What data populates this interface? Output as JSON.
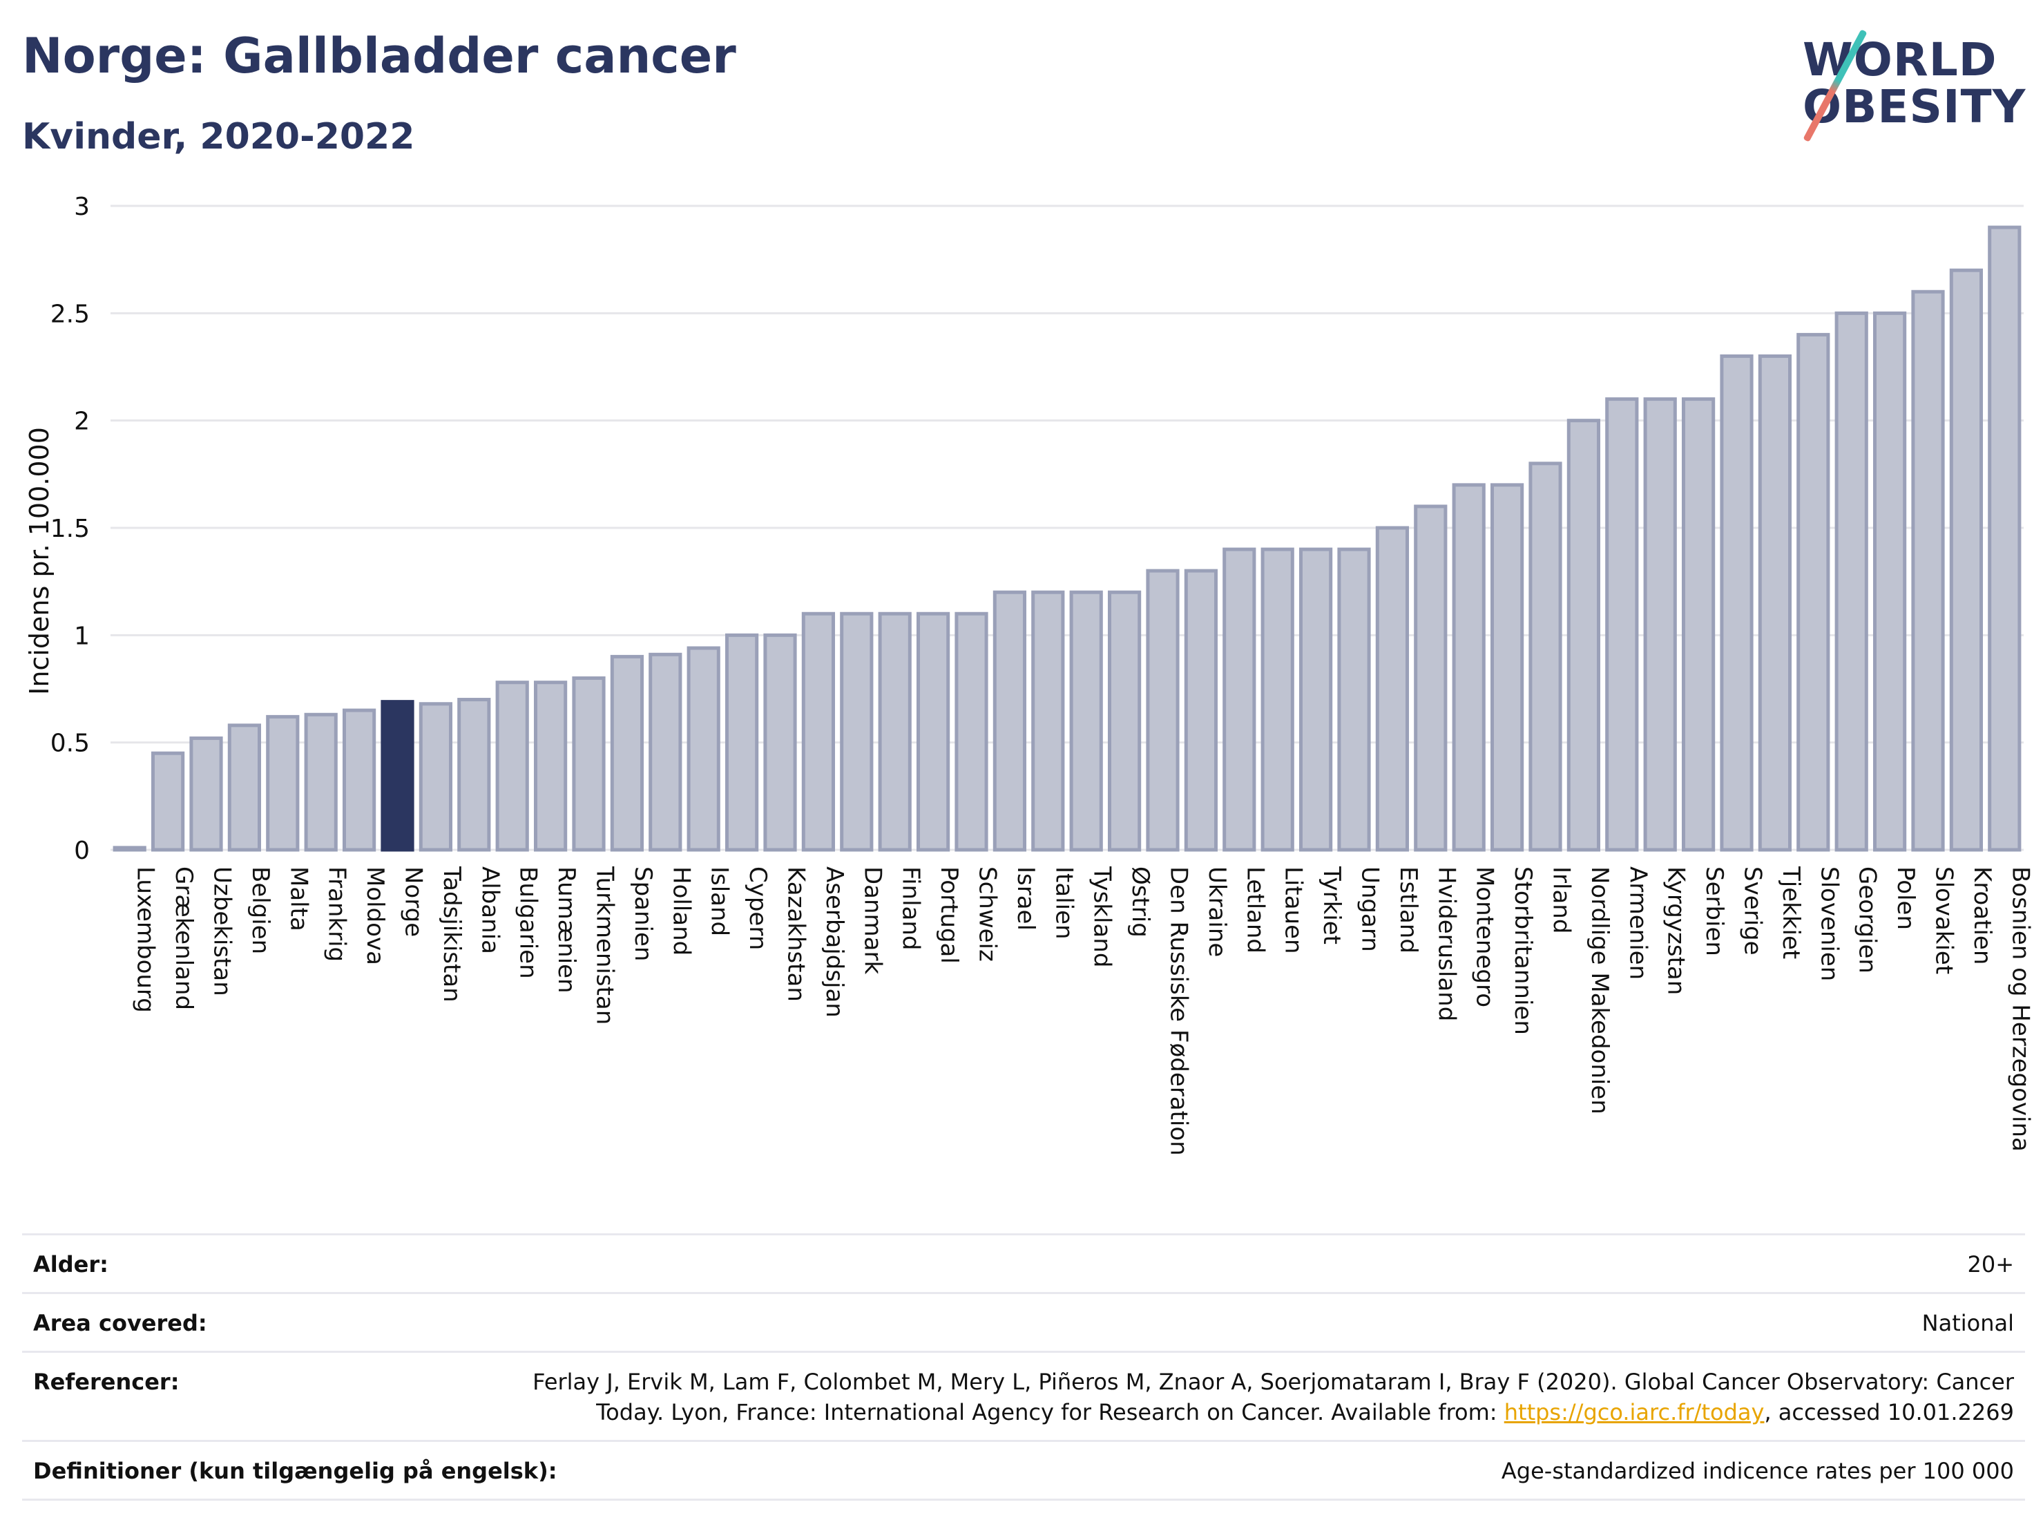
{
  "header": {
    "title": "Norge: Gallbladder cancer",
    "subtitle": "Kvinder, 2020-2022"
  },
  "logo": {
    "line1": "WORLD",
    "line2": "OBESITY"
  },
  "colors": {
    "bar": "#bfc3d1",
    "bar_border": "#9aa0b8",
    "highlight": "#2b3660",
    "title": "#2b3660"
  },
  "chart_data": {
    "type": "bar",
    "ylabel": "Incidens pr. 100.000",
    "ylim": [
      0,
      3
    ],
    "yticks": [
      0,
      0.5,
      1,
      1.5,
      2,
      2.5,
      3
    ],
    "ytick_labels": [
      "0",
      "0.5",
      "1",
      "1.5",
      "2",
      "2.5",
      "3"
    ],
    "grid": true,
    "highlight": "Norge",
    "categories": [
      "Luxembourg",
      "Grækenland",
      "Uzbekistan",
      "Belgien",
      "Malta",
      "Frankrig",
      "Moldova",
      "Norge",
      "Tadsjikistan",
      "Albania",
      "Bulgarien",
      "Rumænien",
      "Turkmenistan",
      "Spanien",
      "Holland",
      "Island",
      "Cypern",
      "Kazakhstan",
      "Aserbajdsjan",
      "Danmark",
      "Finland",
      "Portugal",
      "Schweiz",
      "Israel",
      "Italien",
      "Tyskland",
      "Østrig",
      "Den Russiske Føderation",
      "Ukraine",
      "Letland",
      "Litauen",
      "Tyrkiet",
      "Ungarn",
      "Estland",
      "Hviderusland",
      "Montenegro",
      "Storbritannien",
      "Irland",
      "Nordlige Makedonien",
      "Armenien",
      "Kyrgyzstan",
      "Serbien",
      "Sverige",
      "Tjekkiet",
      "Slovenien",
      "Georgien",
      "Polen",
      "Slovakiet",
      "Kroatien",
      "Bosnien og Herzegovina"
    ],
    "values": [
      0.01,
      0.45,
      0.52,
      0.58,
      0.62,
      0.63,
      0.65,
      0.69,
      0.68,
      0.7,
      0.78,
      0.78,
      0.8,
      0.9,
      0.91,
      0.94,
      1.0,
      1.0,
      1.1,
      1.1,
      1.1,
      1.1,
      1.1,
      1.2,
      1.2,
      1.2,
      1.2,
      1.3,
      1.3,
      1.4,
      1.4,
      1.4,
      1.4,
      1.5,
      1.6,
      1.7,
      1.7,
      1.8,
      2.0,
      2.1,
      2.1,
      2.1,
      2.3,
      2.3,
      2.4,
      2.5,
      2.5,
      2.6,
      2.7,
      2.9
    ]
  },
  "meta": {
    "age_label": "Alder:",
    "age_value": "20+",
    "area_label": "Area covered:",
    "area_value": "National",
    "ref_label": "Referencer:",
    "ref_text_1": "Ferlay J, Ervik M, Lam F, Colombet M, Mery L, Piñeros M, Znaor A, Soerjomataram I, Bray F (2020). Global Cancer Observatory: Cancer Today. Lyon, France: International Agency for Research on Cancer. Available from: ",
    "ref_link": "https://gco.iarc.fr/today",
    "ref_text_2": ", accessed 10.01.2269",
    "def_label": "Definitioner (kun tilgængelig på engelsk):",
    "def_value": "Age-standardized indicence rates per 100 000"
  }
}
